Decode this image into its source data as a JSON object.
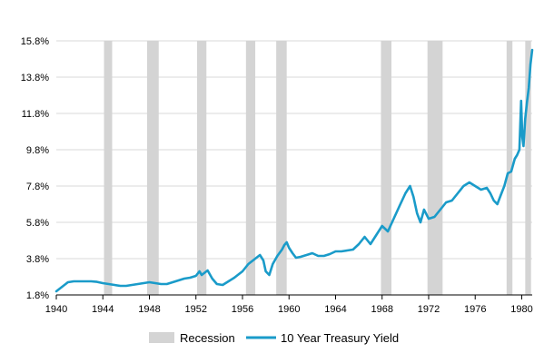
{
  "colors": {
    "background": "#ffffff",
    "series": "#1a9bc9",
    "recession": "#d4d4d4",
    "grid": "#d9d9d9",
    "axis": "#000000"
  },
  "chart_data": {
    "type": "line",
    "title": "",
    "xlabel": "",
    "ylabel": "",
    "xlim": [
      1940,
      1980.9
    ],
    "ylim": [
      1.8,
      15.8
    ],
    "grid": "horizontal",
    "legend_position": "bottom",
    "x_ticks": [
      {
        "value": 1940,
        "label": "1940"
      },
      {
        "value": 1944,
        "label": "1944"
      },
      {
        "value": 1948,
        "label": "1948"
      },
      {
        "value": 1952,
        "label": "1952"
      },
      {
        "value": 1956,
        "label": "1956"
      },
      {
        "value": 1960,
        "label": "1960"
      },
      {
        "value": 1964,
        "label": "1964"
      },
      {
        "value": 1968,
        "label": "1968"
      },
      {
        "value": 1972,
        "label": "1972"
      },
      {
        "value": 1976,
        "label": "1976"
      },
      {
        "value": 1980,
        "label": "1980"
      }
    ],
    "y_ticks": [
      {
        "value": 1.8,
        "label": "1.8%"
      },
      {
        "value": 3.8,
        "label": "3.8%"
      },
      {
        "value": 5.8,
        "label": "5.8%"
      },
      {
        "value": 7.8,
        "label": "7.8%"
      },
      {
        "value": 9.8,
        "label": "9.8%"
      },
      {
        "value": 11.8,
        "label": "11.8%"
      },
      {
        "value": 13.8,
        "label": "13.8%"
      },
      {
        "value": 15.8,
        "label": "15.8%"
      }
    ],
    "recessions": [
      {
        "start": 1944.1,
        "end": 1944.8
      },
      {
        "start": 1947.8,
        "end": 1948.8
      },
      {
        "start": 1952.1,
        "end": 1952.9
      },
      {
        "start": 1956.3,
        "end": 1957.1
      },
      {
        "start": 1958.9,
        "end": 1959.8
      },
      {
        "start": 1967.9,
        "end": 1968.8
      },
      {
        "start": 1971.9,
        "end": 1973.2
      },
      {
        "start": 1978.7,
        "end": 1979.2
      },
      {
        "start": 1980.3,
        "end": 1980.8
      }
    ],
    "legend": [
      {
        "key": "recession",
        "label": "Recession"
      },
      {
        "key": "series",
        "label": "10 Year Treasury Yield"
      }
    ],
    "series": [
      {
        "name": "10 Year Treasury Yield",
        "points": [
          [
            1940.0,
            2.0
          ],
          [
            1940.5,
            2.25
          ],
          [
            1941.0,
            2.5
          ],
          [
            1941.5,
            2.55
          ],
          [
            1942.0,
            2.55
          ],
          [
            1942.5,
            2.55
          ],
          [
            1943.0,
            2.55
          ],
          [
            1943.5,
            2.52
          ],
          [
            1944.0,
            2.45
          ],
          [
            1944.5,
            2.4
          ],
          [
            1945.0,
            2.35
          ],
          [
            1945.5,
            2.3
          ],
          [
            1946.0,
            2.3
          ],
          [
            1946.5,
            2.35
          ],
          [
            1947.0,
            2.4
          ],
          [
            1947.5,
            2.45
          ],
          [
            1948.0,
            2.5
          ],
          [
            1948.5,
            2.45
          ],
          [
            1949.0,
            2.4
          ],
          [
            1949.5,
            2.4
          ],
          [
            1950.0,
            2.5
          ],
          [
            1950.5,
            2.6
          ],
          [
            1951.0,
            2.7
          ],
          [
            1951.5,
            2.75
          ],
          [
            1952.0,
            2.85
          ],
          [
            1952.3,
            3.1
          ],
          [
            1952.5,
            2.9
          ],
          [
            1953.0,
            3.15
          ],
          [
            1953.4,
            2.7
          ],
          [
            1953.8,
            2.4
          ],
          [
            1954.3,
            2.35
          ],
          [
            1954.8,
            2.55
          ],
          [
            1955.3,
            2.75
          ],
          [
            1955.7,
            2.95
          ],
          [
            1956.0,
            3.1
          ],
          [
            1956.5,
            3.5
          ],
          [
            1957.0,
            3.75
          ],
          [
            1957.5,
            4.0
          ],
          [
            1957.8,
            3.7
          ],
          [
            1958.0,
            3.1
          ],
          [
            1958.3,
            2.9
          ],
          [
            1958.6,
            3.5
          ],
          [
            1959.0,
            3.95
          ],
          [
            1959.4,
            4.3
          ],
          [
            1959.6,
            4.55
          ],
          [
            1959.8,
            4.7
          ],
          [
            1960.0,
            4.4
          ],
          [
            1960.3,
            4.1
          ],
          [
            1960.6,
            3.85
          ],
          [
            1961.0,
            3.9
          ],
          [
            1961.5,
            4.0
          ],
          [
            1962.0,
            4.1
          ],
          [
            1962.5,
            3.95
          ],
          [
            1963.0,
            3.95
          ],
          [
            1963.5,
            4.05
          ],
          [
            1964.0,
            4.2
          ],
          [
            1964.5,
            4.2
          ],
          [
            1965.0,
            4.25
          ],
          [
            1965.5,
            4.3
          ],
          [
            1966.0,
            4.6
          ],
          [
            1966.5,
            5.0
          ],
          [
            1967.0,
            4.6
          ],
          [
            1967.5,
            5.1
          ],
          [
            1968.0,
            5.6
          ],
          [
            1968.5,
            5.3
          ],
          [
            1969.0,
            6.0
          ],
          [
            1969.5,
            6.7
          ],
          [
            1970.0,
            7.4
          ],
          [
            1970.4,
            7.8
          ],
          [
            1970.7,
            7.2
          ],
          [
            1971.0,
            6.3
          ],
          [
            1971.3,
            5.8
          ],
          [
            1971.6,
            6.5
          ],
          [
            1972.0,
            6.0
          ],
          [
            1972.5,
            6.1
          ],
          [
            1973.0,
            6.5
          ],
          [
            1973.5,
            6.9
          ],
          [
            1974.0,
            7.0
          ],
          [
            1974.5,
            7.4
          ],
          [
            1975.0,
            7.8
          ],
          [
            1975.5,
            8.0
          ],
          [
            1976.0,
            7.8
          ],
          [
            1976.5,
            7.6
          ],
          [
            1977.0,
            7.7
          ],
          [
            1977.3,
            7.4
          ],
          [
            1977.6,
            7.0
          ],
          [
            1977.9,
            6.8
          ],
          [
            1978.2,
            7.3
          ],
          [
            1978.5,
            7.8
          ],
          [
            1978.8,
            8.5
          ],
          [
            1979.1,
            8.6
          ],
          [
            1979.4,
            9.3
          ],
          [
            1979.6,
            9.5
          ],
          [
            1979.8,
            9.8
          ],
          [
            1979.95,
            12.5
          ],
          [
            1980.05,
            10.5
          ],
          [
            1980.15,
            10.0
          ],
          [
            1980.3,
            11.5
          ],
          [
            1980.45,
            12.4
          ],
          [
            1980.6,
            13.2
          ],
          [
            1980.75,
            14.5
          ],
          [
            1980.9,
            15.3
          ]
        ]
      }
    ]
  }
}
